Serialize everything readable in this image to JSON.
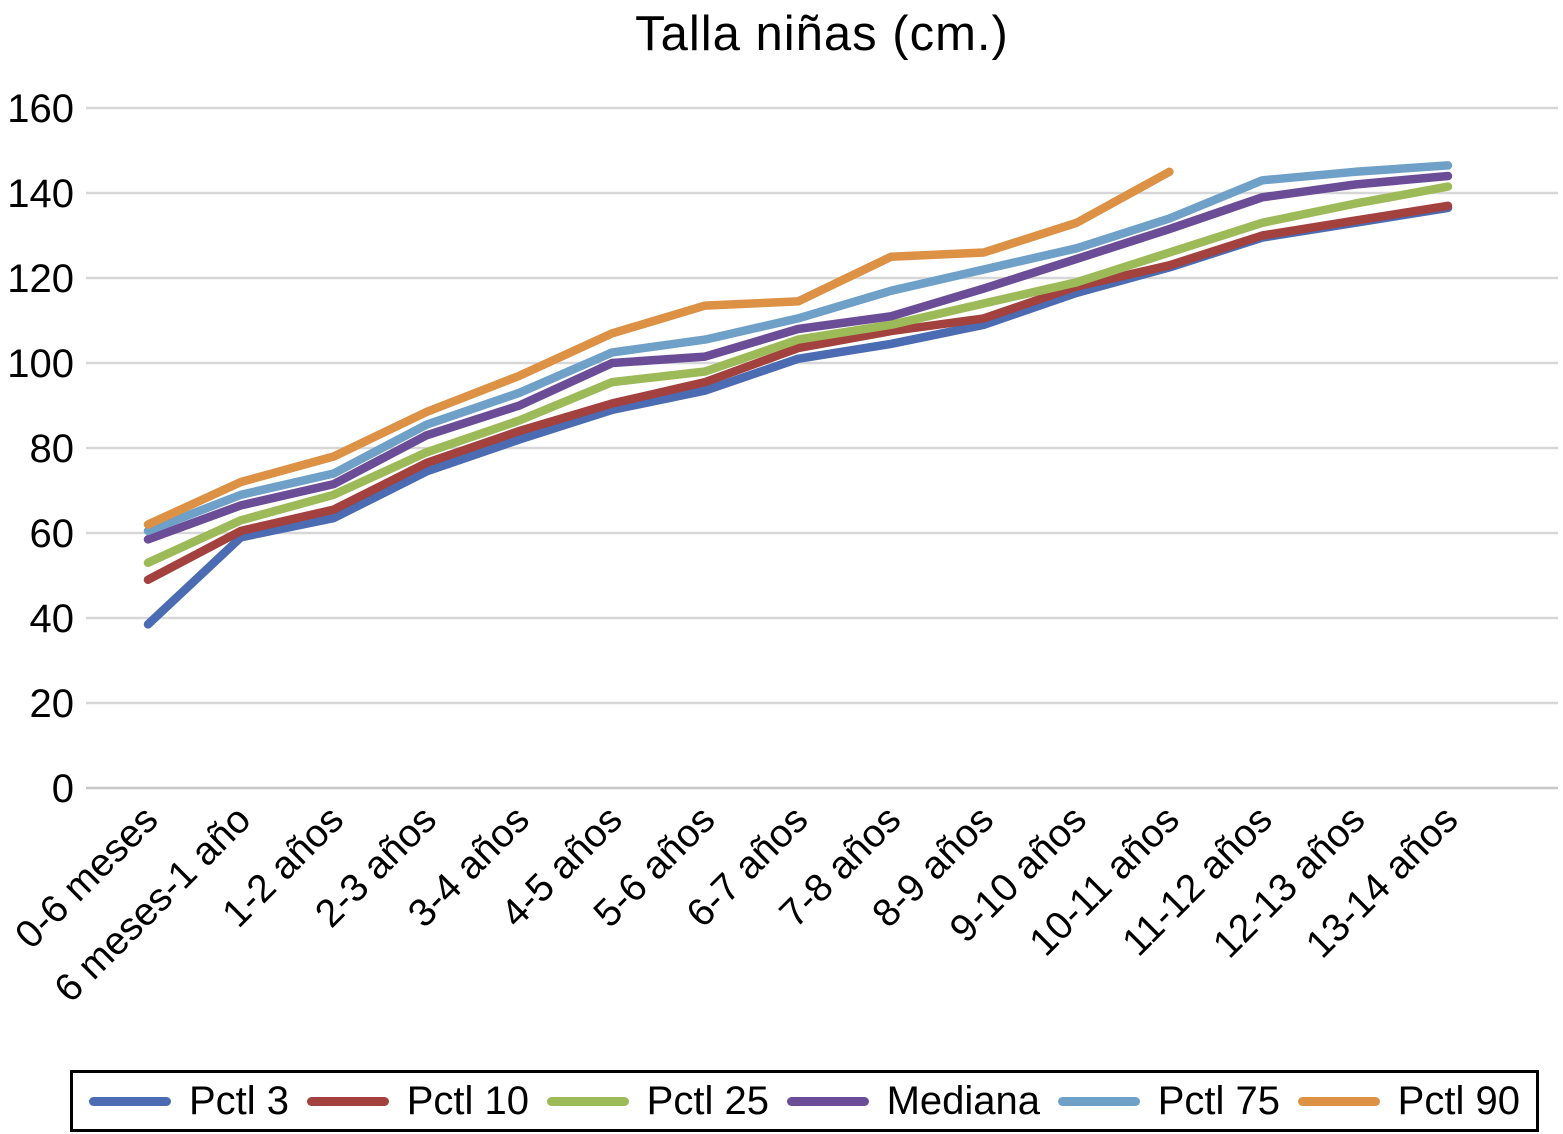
{
  "chart_data": {
    "type": "line",
    "title": "Talla niñas (cm.)",
    "categories": [
      "0-6 meses",
      "6 meses-1 año",
      "1-2 años",
      "2-3 años",
      "3-4 años",
      "4-5 años",
      "5-6 años",
      "6-7 años",
      "7-8 años",
      "8-9 años",
      "9-10 años",
      "10-11 años",
      "11-12 años",
      "12-13 años",
      "13-14 años"
    ],
    "series": [
      {
        "name": "Pctl 3",
        "color": "#4b6bb2",
        "values": [
          38.5,
          59,
          63.5,
          74.5,
          82,
          89,
          93.5,
          101,
          104.5,
          109,
          116.5,
          122.5,
          129.5,
          133,
          136.5
        ]
      },
      {
        "name": "Pctl 10",
        "color": "#a2413d",
        "values": [
          49,
          60.5,
          65.5,
          76.5,
          84,
          90.5,
          95.5,
          103.5,
          107.5,
          110.5,
          118,
          123,
          130,
          133.5,
          137
        ]
      },
      {
        "name": "Pctl 25",
        "color": "#9dba59",
        "values": [
          53,
          63,
          69,
          79,
          86.5,
          95.5,
          98,
          105.5,
          109,
          114,
          119,
          126,
          133,
          137.5,
          141.5
        ]
      },
      {
        "name": "Mediana",
        "color": "#6b4d97",
        "values": [
          58.5,
          66.5,
          71.5,
          83,
          90,
          100,
          101.5,
          108,
          111,
          117.5,
          124.5,
          131.5,
          139,
          142,
          144
        ]
      },
      {
        "name": "Pctl 75",
        "color": "#6fa0c8",
        "values": [
          60.5,
          69,
          74,
          85.5,
          93,
          102.5,
          105.5,
          110.5,
          117,
          122,
          127,
          134,
          143,
          145,
          146.5
        ]
      },
      {
        "name": "Pctl 90",
        "color": "#dc9145",
        "values": [
          62,
          72,
          78,
          88.5,
          97,
          107,
          113.5,
          114.5,
          125,
          126,
          133,
          145,
          null,
          null,
          null
        ]
      }
    ],
    "ylim": [
      0,
      160
    ],
    "ytick_step": 20,
    "ytick_labels": [
      "0",
      "20",
      "40",
      "60",
      "80",
      "100",
      "120",
      "140",
      "160"
    ],
    "grid": "horizontal",
    "grid_color": "#d7d7d7",
    "axis_line_color": "#c8c8c8",
    "legend_position": "bottom",
    "x_label_rotation_deg": 45
  }
}
